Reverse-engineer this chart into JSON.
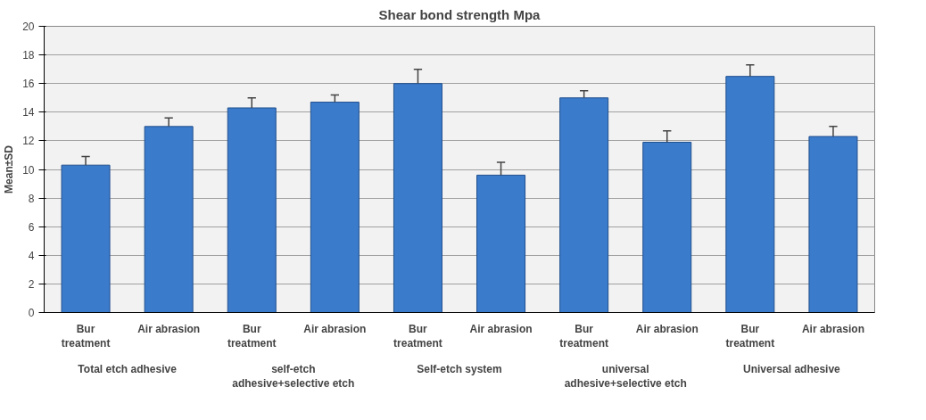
{
  "chart_data": {
    "type": "bar",
    "title": "Shear bond strength Mpa",
    "ylabel": "Mean±SD",
    "categories": [
      "Bur treatment",
      "Air abrasion",
      "Bur treatment",
      "Air abrasion",
      "Bur treatment",
      "Air abrasion",
      "Bur treatment",
      "Air abrasion",
      "Bur treatment",
      "Air abrasion"
    ],
    "values": [
      10.3,
      13.0,
      14.3,
      14.7,
      16.0,
      9.6,
      15.0,
      11.9,
      16.5,
      12.3
    ],
    "errors": [
      [
        10.3,
        10.9
      ],
      [
        13.0,
        13.6
      ],
      [
        14.3,
        15.0
      ],
      [
        14.7,
        15.2
      ],
      [
        16.0,
        17.0
      ],
      [
        9.6,
        10.5
      ],
      [
        15.0,
        15.5
      ],
      [
        11.9,
        12.7
      ],
      [
        16.5,
        17.3
      ],
      [
        12.3,
        13.0
      ]
    ],
    "color": "#3b7bcc",
    "annotations": [
      "Total etch adhesive",
      "self-etch adhesive+selective etch",
      "Self-etch system",
      "universal adhesive+selective etch",
      "Universal adhesive"
    ],
    "ylim": [
      0,
      20
    ],
    "yticks": [
      0,
      2,
      4,
      6,
      8,
      10,
      12,
      14,
      16,
      18,
      20
    ],
    "grid": "y"
  }
}
